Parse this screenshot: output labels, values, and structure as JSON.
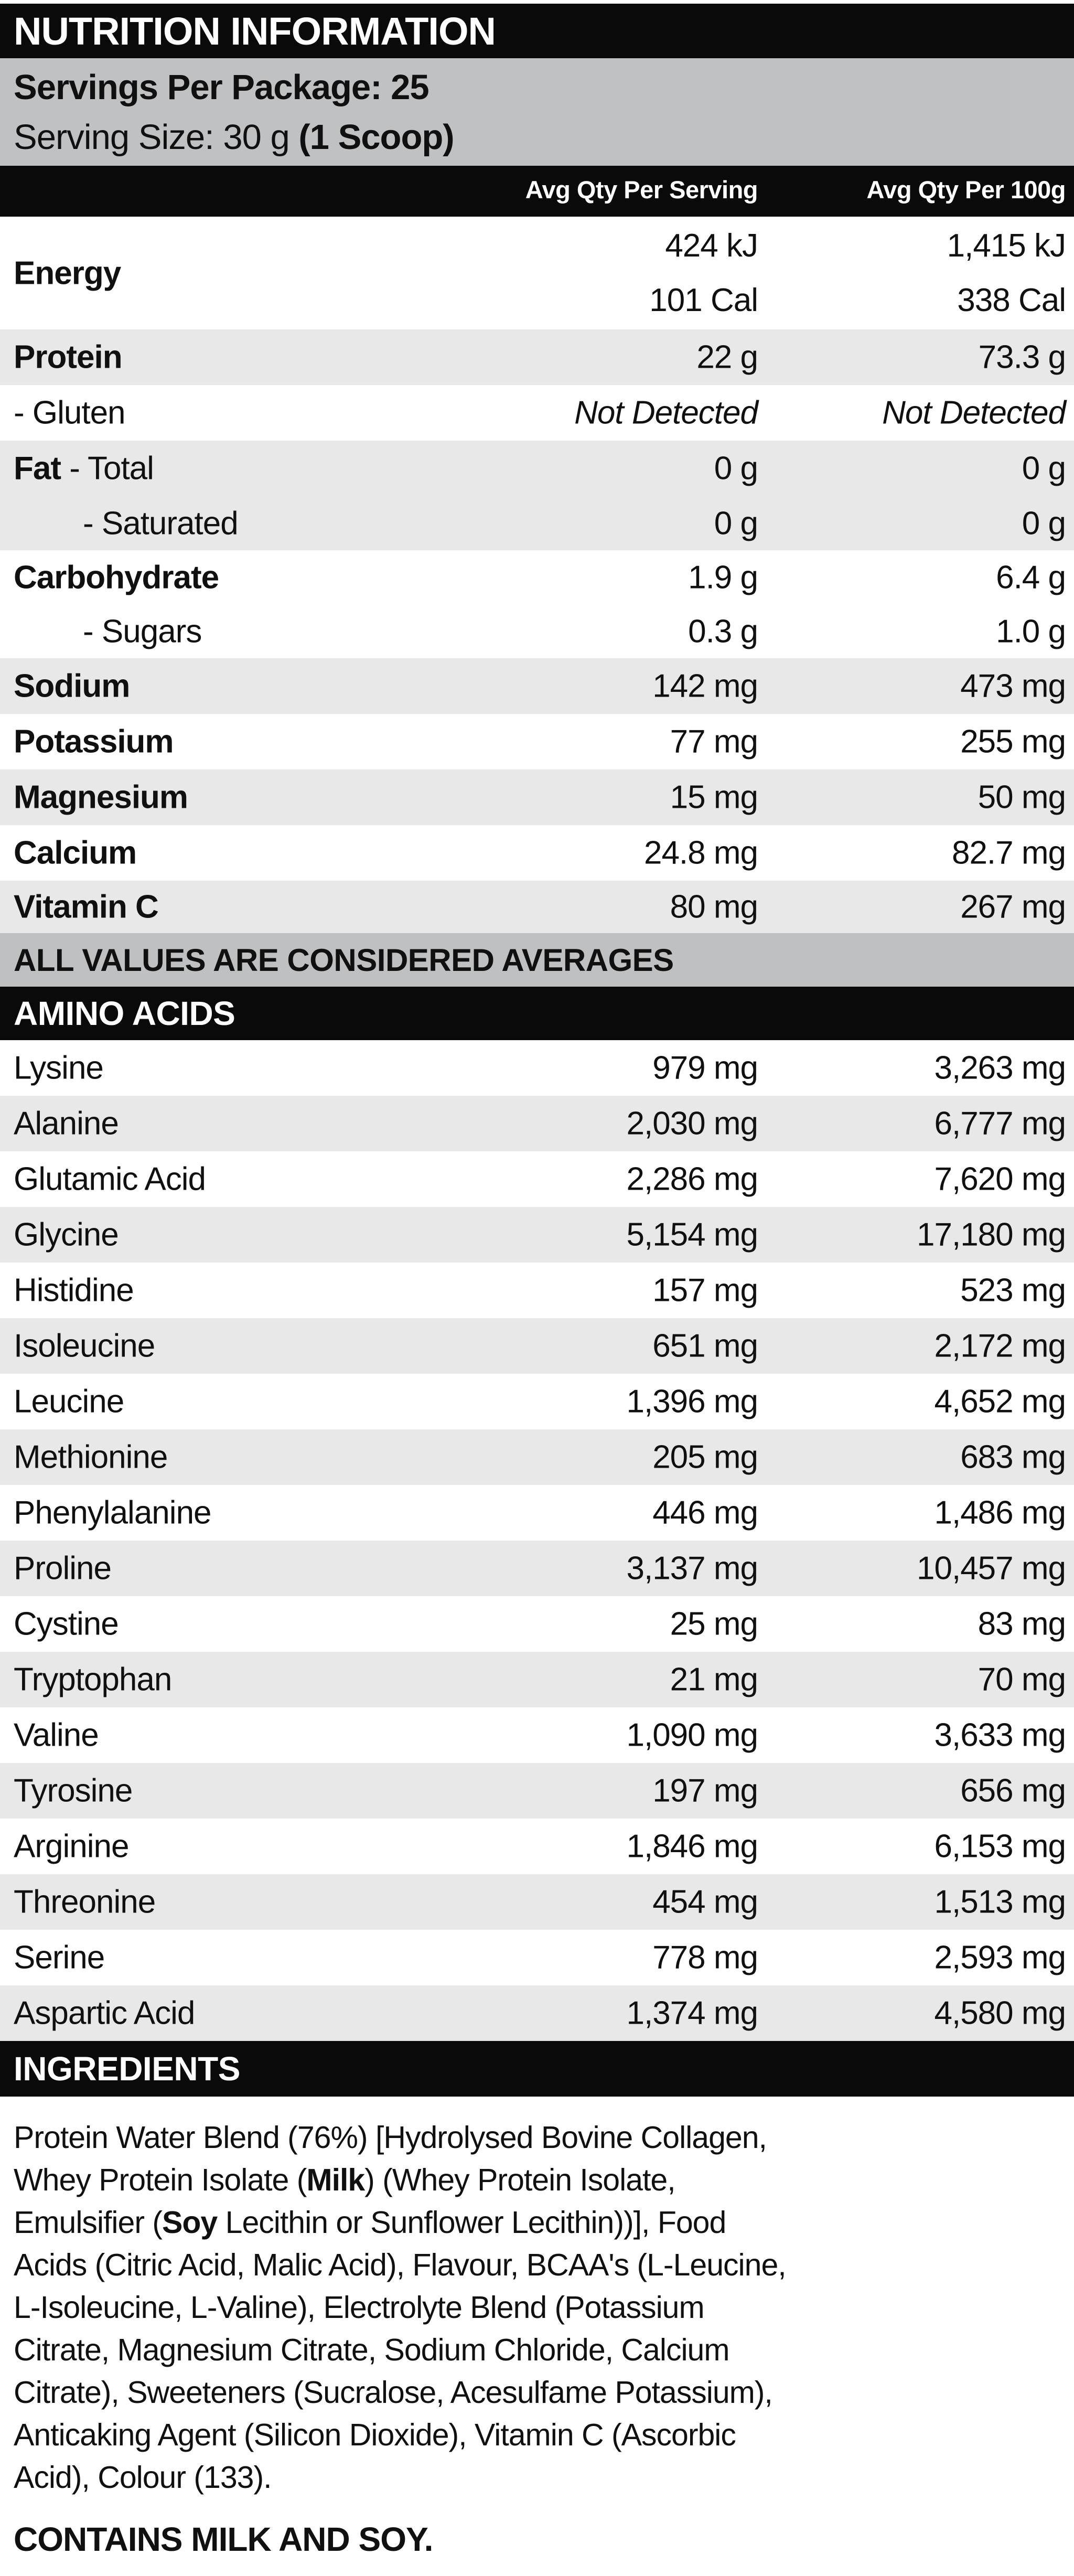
{
  "title": "NUTRITION INFORMATION",
  "servings": {
    "per_package": "Servings Per Package: 25",
    "size_prefix": "Serving Size: 30 g ",
    "size_bold": "(1 Scoop)"
  },
  "columns": {
    "per_serving": "Avg Qty Per Serving",
    "per_100g": "Avg Qty Per 100g"
  },
  "colors": {
    "bar_black": "#0a0a0b",
    "header_gray": "#bfc1c3",
    "row_gray": "#e8e8e9",
    "text": "#101010"
  },
  "nutrition_rows": [
    {
      "name": "Energy",
      "name_bold": true,
      "tall": true,
      "shaded": false,
      "serving": [
        "424 kJ",
        "101 Cal"
      ],
      "per100": [
        "1,415 kJ",
        "338 Cal"
      ]
    },
    {
      "name": "Protein",
      "name_bold": true,
      "shaded": true,
      "serving": "22 g",
      "per100": "73.3 g"
    },
    {
      "name": "- Gluten",
      "shaded": false,
      "italic_values": true,
      "serving": "Not Detected",
      "per100": "Not Detected"
    },
    {
      "name": "Fat - Total",
      "bold_prefix": "Fat",
      "shaded": true,
      "serving": "0 g",
      "per100": "0 g"
    },
    {
      "name": "- Saturated",
      "indent": true,
      "shaded": true,
      "height": 103,
      "serving": "0 g",
      "per100": "0 g"
    },
    {
      "name": "Carbohydrate",
      "name_bold": true,
      "shaded": false,
      "height": 103,
      "serving": "1.9 g",
      "per100": "6.4 g"
    },
    {
      "name": "- Sugars",
      "indent": true,
      "shaded": false,
      "height": 103,
      "serving": "0.3 g",
      "per100": "1.0 g"
    },
    {
      "name": "Sodium",
      "name_bold": true,
      "shaded": true,
      "serving": "142 mg",
      "per100": "473 mg"
    },
    {
      "name": "Potassium",
      "name_bold": true,
      "shaded": false,
      "serving": "77 mg",
      "per100": "255 mg"
    },
    {
      "name": "Magnesium",
      "name_bold": true,
      "shaded": true,
      "serving": "15 mg",
      "per100": "50 mg"
    },
    {
      "name": "Calcium",
      "name_bold": true,
      "shaded": false,
      "serving": "24.8 mg",
      "per100": "82.7 mg"
    },
    {
      "name": "Vitamin C",
      "name_bold": true,
      "shaded": true,
      "height": 100,
      "serving": "80 mg",
      "per100": "267 mg"
    }
  ],
  "all_values_note": "ALL VALUES ARE CONSIDERED AVERAGES",
  "amino_acids": {
    "header": "AMINO ACIDS",
    "rows": [
      {
        "name": "Lysine",
        "serving": "979 mg",
        "per100": "3,263 mg"
      },
      {
        "name": "Alanine",
        "serving": "2,030 mg",
        "per100": "6,777 mg"
      },
      {
        "name": "Glutamic Acid",
        "serving": "2,286 mg",
        "per100": "7,620 mg"
      },
      {
        "name": "Glycine",
        "serving": "5,154 mg",
        "per100": "17,180 mg"
      },
      {
        "name": "Histidine",
        "serving": "157 mg",
        "per100": "523 mg"
      },
      {
        "name": "Isoleucine",
        "serving": "651 mg",
        "per100": "2,172 mg"
      },
      {
        "name": "Leucine",
        "serving": "1,396 mg",
        "per100": "4,652 mg"
      },
      {
        "name": "Methionine",
        "serving": "205 mg",
        "per100": "683 mg"
      },
      {
        "name": "Phenylalanine",
        "serving": "446 mg",
        "per100": "1,486 mg"
      },
      {
        "name": "Proline",
        "serving": "3,137 mg",
        "per100": "10,457 mg"
      },
      {
        "name": "Cystine",
        "serving": "25 mg",
        "per100": "83 mg"
      },
      {
        "name": "Tryptophan",
        "serving": "21 mg",
        "per100": "70 mg"
      },
      {
        "name": "Valine",
        "serving": "1,090 mg",
        "per100": "3,633 mg"
      },
      {
        "name": "Tyrosine",
        "serving": "197 mg",
        "per100": "656 mg"
      },
      {
        "name": "Arginine",
        "serving": "1,846 mg",
        "per100": "6,153 mg"
      },
      {
        "name": "Threonine",
        "serving": "454 mg",
        "per100": "1,513 mg"
      },
      {
        "name": "Serine",
        "serving": "778 mg",
        "per100": "2,593 mg"
      },
      {
        "name": "Aspartic Acid",
        "serving": "1,374 mg",
        "per100": "4,580 mg"
      }
    ]
  },
  "ingredients": {
    "header": "INGREDIENTS",
    "lines": [
      [
        {
          "t": "Protein Water Blend (76%) [Hydrolysed Bovine Collagen,"
        }
      ],
      [
        {
          "t": "Whey Protein Isolate ("
        },
        {
          "t": "Milk",
          "b": true
        },
        {
          "t": ") (Whey Protein Isolate,"
        }
      ],
      [
        {
          "t": "Emulsifier ("
        },
        {
          "t": "Soy",
          "b": true
        },
        {
          "t": " Lecithin or Sunflower Lecithin))], Food"
        }
      ],
      [
        {
          "t": "Acids (Citric Acid, Malic Acid), Flavour, BCAA's (L-Leucine,"
        }
      ],
      [
        {
          "t": "L-Isoleucine, L-Valine), Electrolyte Blend (Potassium"
        }
      ],
      [
        {
          "t": "Citrate, Magnesium Citrate, Sodium Chloride, Calcium"
        }
      ],
      [
        {
          "t": "Citrate), Sweeteners (Sucralose, Acesulfame Potassium),"
        }
      ],
      [
        {
          "t": "Anticaking Agent (Silicon Dioxide), Vitamin C (Ascorbic"
        }
      ],
      [
        {
          "t": "Acid), Colour (133)."
        }
      ]
    ]
  },
  "contains_statement": "CONTAINS MILK AND SOY."
}
